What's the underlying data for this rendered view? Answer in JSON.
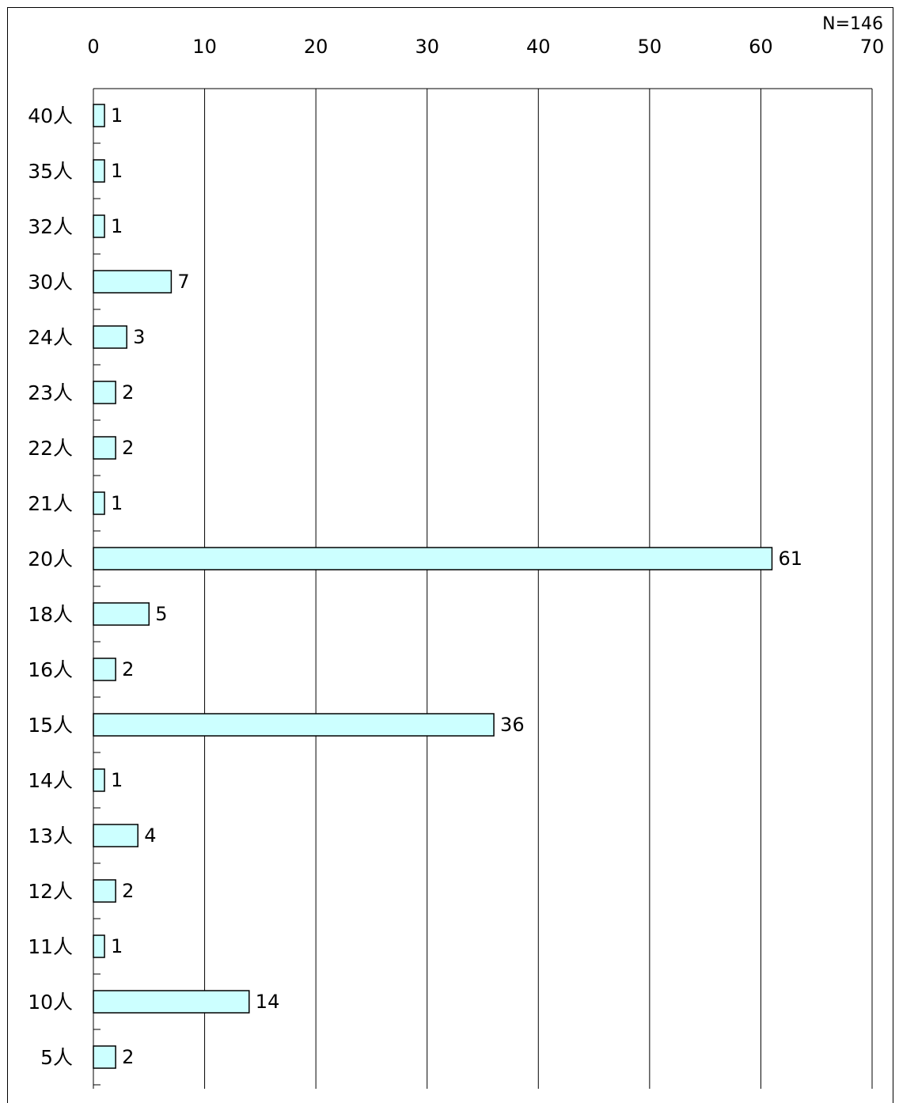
{
  "chart_data": {
    "type": "bar",
    "orientation": "horizontal",
    "annotation": "N=146",
    "categories": [
      "40人",
      "35人",
      "32人",
      "30人",
      "24人",
      "23人",
      "22人",
      "21人",
      "20人",
      "18人",
      "16人",
      "15人",
      "14人",
      "13人",
      "12人",
      "11人",
      "10人",
      "5人"
    ],
    "values": [
      1,
      1,
      1,
      7,
      3,
      2,
      2,
      1,
      61,
      5,
      2,
      36,
      1,
      4,
      2,
      1,
      14,
      2
    ],
    "xlim": [
      0,
      70
    ],
    "xticks": [
      0,
      10,
      20,
      30,
      40,
      50,
      60,
      70
    ],
    "xaxis_position": "top",
    "grid": "vertical",
    "legend": "none",
    "title": "",
    "xlabel": "",
    "ylabel": "",
    "colors": {
      "bar_fill": "#ccffff",
      "bar_stroke": "#000000",
      "grid": "#000000"
    }
  }
}
